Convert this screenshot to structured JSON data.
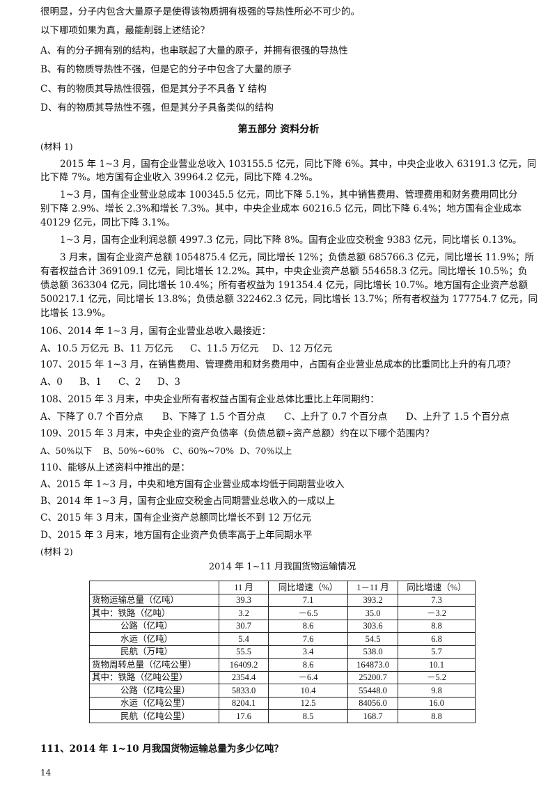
{
  "intro_lines": [
    "很明显，分子内包含大量原子是使得该物质拥有极强的导热性所必不可少的。",
    "以下哪项如果为真，最能削弱上述结论？",
    "A、有的分子拥有别的结构，也串联起了大量的原子，并拥有很强的导热性",
    "B、有的物质导热性不强，但是它的分子中包含了大量的原子",
    "C、有的物质其导热性很强，但是其分子不具备 Y 结构",
    "D、有的物质其导热性不强，但是其分子具备类似的结构"
  ],
  "section_heading": "第五部分  资料分析",
  "material1_label": "(材料 1)",
  "material1_lines": [
    "2015 年 1~3 月，国有企业营业总收入 103155.5 亿元，同比下降 6%。其中，中央企业收入 63191.3 亿元，同",
    "比下降 7%。地方国有企业收入 39964.2 亿元，同比下降 4.2%。",
    "1~3 月，国有企业营业总成本 100345.5 亿元，同比下降 5.1%，其中销售费用、管理费用和财务费用同比分",
    "别下降 2.9%、增长 2.3%和增长 7.3%。其中，中央企业成本 60216.5 亿元，同比下降 6.4%；地方国有企业成本",
    "40129 亿元，同比下降 3.1%。",
    "1~3 月，国有企业利润总额 4997.3 亿元，同比下降 8%。国有企业应交税金 9383 亿元，同比增长 0.13%。",
    "3 月末，国有企业资产总额 1054875.4 亿元，同比增长 12%；负债总额 685766.3 亿元，同比增长 11.9%；所",
    "有者权益合计 369109.1 亿元，同比增长 12.2%。其中，中央企业资产总额 554658.3 亿元。同比增长 10.5%；负",
    "债总额 363304 亿元，同比增长 10.4%；所有者权益为 191354.4 亿元，同比增长 10.7%。地方国有企业资产总额",
    "500217.1 亿元，同比增长 13.8%；负债总额 322462.3 亿元，同比增长 13.7%；所有者权益为 177754.7 亿元，同",
    "比增长 13.9%。"
  ],
  "questions": [
    {
      "stem": "106、2014 年 1~3 月，国有企业营业总收入最接近：",
      "options": [
        "A、10.5 万亿元",
        "B、11 万亿元",
        "C、11.5 万亿元",
        "D、12 万亿元"
      ]
    },
    {
      "stem": "107、2015 年 1~3 月，在销售费用、管理费用和财务费用中，占国有企业营业总成本的比重同比上升的有几项？",
      "options": [
        "A、0",
        "B、1",
        "C、2",
        "D、3"
      ]
    },
    {
      "stem": "108、2015 年 3 月末，中央企业所有者权益占国有企业总体比重比上年同期约：",
      "options": [
        "A、下降了 0.7 个百分点",
        "B、下降了 1.5 个百分点",
        "C、上升了 0.7 个百分点",
        "D、上升了 1.5 个百分点"
      ]
    },
    {
      "stem": "109、2015 年 3 月末，中央企业的资产负债率（负债总额÷资产总额）约在以下哪个范围内？",
      "options": [
        "A、50%以下",
        "B、50%~60%",
        "C、60%~70%",
        "D、70%以上"
      ]
    },
    {
      "stem": "110、能够从上述资料中推出的是：",
      "options": [
        "A、2015 年 1~3 月，中央和地方国有企业营业成本均低于同期营业收入",
        "B、2014 年 1~3 月，国有企业应交税金占同期营业总收入的一成以上",
        "C、2015 年 3 月末，国有企业资产总额同比增长不到 12 万亿元",
        "D、2015 年 3 月末，地方国有企业资产负债率高于上年同期水平"
      ]
    }
  ],
  "material2_label": "(材料 2)",
  "table": {
    "title": "2014 年 1~11 月我国货物运输情况",
    "headers": [
      "",
      "11 月",
      "同比增速（%）",
      "1－11 月",
      "同比增速（%）"
    ],
    "rows": [
      [
        "货物运输总量（亿吨）",
        "39.3",
        "7.1",
        "393.2",
        "7.3"
      ],
      [
        "其中：铁路（亿吨）",
        "3.2",
        "－6.5",
        "35.0",
        "－3.2"
      ],
      [
        "公路（亿吨）",
        "30.7",
        "8.6",
        "303.6",
        "8.8"
      ],
      [
        "水运（亿吨）",
        "5.4",
        "7.6",
        "54.5",
        "6.8"
      ],
      [
        "民航（万吨）",
        "55.5",
        "3.4",
        "538.0",
        "5.7"
      ],
      [
        "货物周转总量（亿吨公里）",
        "16409.2",
        "8.6",
        "164873.0",
        "10.1"
      ],
      [
        "其中：铁路（亿吨公里）",
        "2354.4",
        "－6.4",
        "25200.7",
        "－5.2"
      ],
      [
        "公路（亿吨公里）",
        "5833.0",
        "10.4",
        "55448.0",
        "9.8"
      ],
      [
        "水运（亿吨公里）",
        "8204.1",
        "12.5",
        "84056.0",
        "16.0"
      ],
      [
        "民航（亿吨公里）",
        "17.6",
        "8.5",
        "168.7",
        "8.8"
      ]
    ]
  },
  "question111": "111、2014 年 1~10 月我国货物运输总量为多少亿吨？",
  "page_number": "14"
}
